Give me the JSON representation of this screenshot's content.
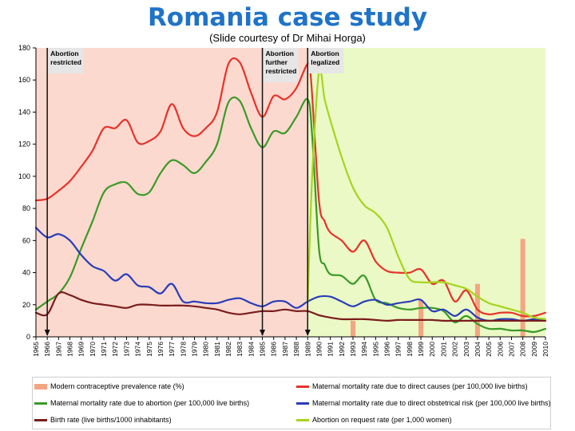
{
  "header": {
    "title": "Romania case study",
    "subtitle": "(Slide courtesy of Dr Mihai Horga)"
  },
  "chart_data": {
    "type": "line",
    "x": [
      1965,
      1966,
      1967,
      1968,
      1969,
      1970,
      1971,
      1972,
      1973,
      1974,
      1975,
      1976,
      1977,
      1978,
      1979,
      1980,
      1981,
      1982,
      1983,
      1984,
      1985,
      1986,
      1987,
      1988,
      1989,
      1990,
      1991,
      1992,
      1993,
      1994,
      1995,
      1996,
      1997,
      1998,
      1999,
      2000,
      2001,
      2002,
      2003,
      2004,
      2005,
      2006,
      2007,
      2008,
      2009,
      2010
    ],
    "xlim": [
      1965,
      2010
    ],
    "ylim": [
      0,
      180
    ],
    "yticks": [
      0,
      20,
      40,
      60,
      80,
      100,
      120,
      140,
      160,
      180
    ],
    "regions": [
      {
        "from": 1965,
        "to": 1989,
        "color": "#fbd9cf"
      },
      {
        "from": 1989,
        "to": 2010,
        "color": "#ebf9c6"
      }
    ],
    "events": [
      {
        "year": 1966,
        "label_lines": [
          "Abortion",
          "restricted"
        ]
      },
      {
        "year": 1985,
        "label_lines": [
          "Abortion",
          "further",
          "restricted"
        ]
      },
      {
        "year": 1989,
        "label_lines": [
          "Abortion",
          "legalized"
        ]
      }
    ],
    "bars": {
      "name": "Modern contraceptive prevalence rate (%)",
      "color": "#f4a582",
      "points": [
        {
          "x": 1993,
          "y": 10
        },
        {
          "x": 1999,
          "y": 23
        },
        {
          "x": 2004,
          "y": 33
        },
        {
          "x": 2008,
          "y": 61
        }
      ]
    },
    "series": [
      {
        "name": "Maternal mortality rate due to direct causes (per 100,000 live births)",
        "color": "#e8322a",
        "points": [
          [
            1965,
            85
          ],
          [
            1966,
            86
          ],
          [
            1967,
            91
          ],
          [
            1968,
            97
          ],
          [
            1969,
            106
          ],
          [
            1970,
            116
          ],
          [
            1971,
            130
          ],
          [
            1972,
            130
          ],
          [
            1973,
            135
          ],
          [
            1974,
            121
          ],
          [
            1975,
            122
          ],
          [
            1976,
            128
          ],
          [
            1977,
            145
          ],
          [
            1978,
            130
          ],
          [
            1979,
            125
          ],
          [
            1980,
            130
          ],
          [
            1981,
            140
          ],
          [
            1982,
            170
          ],
          [
            1983,
            171
          ],
          [
            1984,
            152
          ],
          [
            1985,
            137
          ],
          [
            1986,
            150
          ],
          [
            1987,
            148
          ],
          [
            1988,
            155
          ],
          [
            1989,
            170
          ],
          [
            1989.3,
            160
          ],
          [
            1990,
            85
          ],
          [
            1990.5,
            72
          ],
          [
            1991,
            65
          ],
          [
            1992,
            60
          ],
          [
            1993,
            53
          ],
          [
            1994,
            60
          ],
          [
            1995,
            47
          ],
          [
            1996,
            41
          ],
          [
            1997,
            40
          ],
          [
            1998,
            40
          ],
          [
            1999,
            42
          ],
          [
            2000,
            33
          ],
          [
            2001,
            35
          ],
          [
            2002,
            22
          ],
          [
            2003,
            29
          ],
          [
            2004,
            17
          ],
          [
            2005,
            14
          ],
          [
            2006,
            15
          ],
          [
            2007,
            15
          ],
          [
            2008,
            13
          ],
          [
            2009,
            13
          ],
          [
            2010,
            15
          ]
        ]
      },
      {
        "name": "Maternal mortality rate due to abortion (per 100,000 live births)",
        "color": "#3a9a26",
        "points": [
          [
            1965,
            17
          ],
          [
            1966,
            22
          ],
          [
            1967,
            27
          ],
          [
            1968,
            37
          ],
          [
            1969,
            55
          ],
          [
            1970,
            72
          ],
          [
            1971,
            90
          ],
          [
            1972,
            95
          ],
          [
            1973,
            96
          ],
          [
            1974,
            89
          ],
          [
            1975,
            90
          ],
          [
            1976,
            102
          ],
          [
            1977,
            110
          ],
          [
            1978,
            107
          ],
          [
            1979,
            102
          ],
          [
            1980,
            109
          ],
          [
            1981,
            120
          ],
          [
            1982,
            146
          ],
          [
            1983,
            147
          ],
          [
            1984,
            130
          ],
          [
            1985,
            118
          ],
          [
            1986,
            128
          ],
          [
            1987,
            127
          ],
          [
            1988,
            137
          ],
          [
            1989,
            148
          ],
          [
            1989.4,
            125
          ],
          [
            1990,
            55
          ],
          [
            1990.5,
            45
          ],
          [
            1991,
            39
          ],
          [
            1992,
            38
          ],
          [
            1993,
            33
          ],
          [
            1994,
            38
          ],
          [
            1995,
            23
          ],
          [
            1996,
            21
          ],
          [
            1997,
            18
          ],
          [
            1998,
            17
          ],
          [
            1999,
            18
          ],
          [
            2000,
            18
          ],
          [
            2001,
            16
          ],
          [
            2002,
            9
          ],
          [
            2003,
            13
          ],
          [
            2004,
            8
          ],
          [
            2005,
            5
          ],
          [
            2006,
            5
          ],
          [
            2007,
            4
          ],
          [
            2008,
            4
          ],
          [
            2009,
            3
          ],
          [
            2010,
            5
          ]
        ]
      },
      {
        "name": "Maternal mortality rate due to direct obstetrical risk (per 100,000 live births)",
        "color": "#2a3cb8",
        "points": [
          [
            1965,
            68
          ],
          [
            1966,
            62
          ],
          [
            1967,
            64
          ],
          [
            1968,
            60
          ],
          [
            1969,
            51
          ],
          [
            1970,
            44
          ],
          [
            1971,
            41
          ],
          [
            1972,
            35
          ],
          [
            1973,
            39
          ],
          [
            1974,
            32
          ],
          [
            1975,
            31
          ],
          [
            1976,
            27
          ],
          [
            1977,
            33
          ],
          [
            1978,
            22
          ],
          [
            1979,
            22
          ],
          [
            1980,
            21
          ],
          [
            1981,
            21
          ],
          [
            1982,
            23
          ],
          [
            1983,
            24
          ],
          [
            1984,
            21
          ],
          [
            1985,
            19
          ],
          [
            1986,
            22
          ],
          [
            1987,
            22
          ],
          [
            1988,
            18
          ],
          [
            1989,
            22
          ],
          [
            1990,
            25
          ],
          [
            1991,
            25
          ],
          [
            1992,
            22
          ],
          [
            1993,
            19
          ],
          [
            1994,
            22
          ],
          [
            1995,
            23
          ],
          [
            1996,
            20
          ],
          [
            1997,
            21
          ],
          [
            1998,
            22
          ],
          [
            1999,
            23
          ],
          [
            2000,
            16
          ],
          [
            2001,
            17
          ],
          [
            2002,
            13
          ],
          [
            2003,
            17
          ],
          [
            2004,
            12
          ],
          [
            2005,
            10
          ],
          [
            2006,
            11
          ],
          [
            2007,
            11
          ],
          [
            2008,
            10
          ],
          [
            2009,
            11
          ],
          [
            2010,
            10
          ]
        ]
      },
      {
        "name": "Birth rate (live births/1000 inhabitants)",
        "color": "#7a1c1c",
        "points": [
          [
            1965,
            15
          ],
          [
            1966,
            14
          ],
          [
            1967,
            27
          ],
          [
            1968,
            26
          ],
          [
            1969,
            23
          ],
          [
            1970,
            21
          ],
          [
            1971,
            20
          ],
          [
            1972,
            19
          ],
          [
            1973,
            18
          ],
          [
            1974,
            20
          ],
          [
            1975,
            20
          ],
          [
            1976,
            19.5
          ],
          [
            1977,
            19.5
          ],
          [
            1978,
            19.5
          ],
          [
            1979,
            19
          ],
          [
            1980,
            18
          ],
          [
            1981,
            17
          ],
          [
            1982,
            15
          ],
          [
            1983,
            14
          ],
          [
            1984,
            15
          ],
          [
            1985,
            16
          ],
          [
            1986,
            16
          ],
          [
            1987,
            17
          ],
          [
            1988,
            16
          ],
          [
            1989,
            16
          ],
          [
            1990,
            13.5
          ],
          [
            1991,
            12
          ],
          [
            1992,
            11
          ],
          [
            1993,
            11
          ],
          [
            1994,
            11
          ],
          [
            1995,
            10.5
          ],
          [
            1996,
            10
          ],
          [
            1997,
            10.5
          ],
          [
            1998,
            10.5
          ],
          [
            1999,
            10.5
          ],
          [
            2000,
            10.5
          ],
          [
            2001,
            10
          ],
          [
            2002,
            10
          ],
          [
            2003,
            10
          ],
          [
            2004,
            10
          ],
          [
            2005,
            10
          ],
          [
            2006,
            10
          ],
          [
            2007,
            10
          ],
          [
            2008,
            10
          ],
          [
            2009,
            10
          ],
          [
            2010,
            10
          ]
        ]
      },
      {
        "name": "Abortion on request rate (per 1,000 women)",
        "color": "#a6d41e",
        "points": [
          [
            1989,
            22
          ],
          [
            1989.4,
            100
          ],
          [
            1990,
            165
          ],
          [
            1990.5,
            148
          ],
          [
            1991,
            135
          ],
          [
            1992,
            112
          ],
          [
            1993,
            93
          ],
          [
            1994,
            82
          ],
          [
            1995,
            77
          ],
          [
            1996,
            68
          ],
          [
            1997,
            50
          ],
          [
            1998,
            36
          ],
          [
            1999,
            34
          ],
          [
            2000,
            34
          ],
          [
            2001,
            34
          ],
          [
            2002,
            32
          ],
          [
            2003,
            30
          ],
          [
            2004,
            25
          ],
          [
            2005,
            21
          ],
          [
            2006,
            19
          ],
          [
            2007,
            17
          ],
          [
            2008,
            15
          ],
          [
            2009,
            12
          ],
          [
            2010,
            11
          ]
        ]
      }
    ]
  },
  "legend": {
    "items": [
      {
        "label": "Modern contraceptive prevalence rate (%)",
        "color": "#f4a582",
        "kind": "bar"
      },
      {
        "label": "Maternal mortality rate due to direct causes (per 100,000 live births)",
        "color": "#e8322a",
        "kind": "line"
      },
      {
        "label": "Maternal mortality rate due to abortion (per 100,000 live births)",
        "color": "#3a9a26",
        "kind": "line"
      },
      {
        "label": "Maternal mortality rate due to direct obstetrical risk (per 100,000 live births)",
        "color": "#2a3cb8",
        "kind": "line"
      },
      {
        "label": "Birth rate (live births/1000 inhabitants)",
        "color": "#7a1c1c",
        "kind": "line"
      },
      {
        "label": "Abortion on request rate (per 1,000 women)",
        "color": "#a6d41e",
        "kind": "line"
      }
    ]
  }
}
